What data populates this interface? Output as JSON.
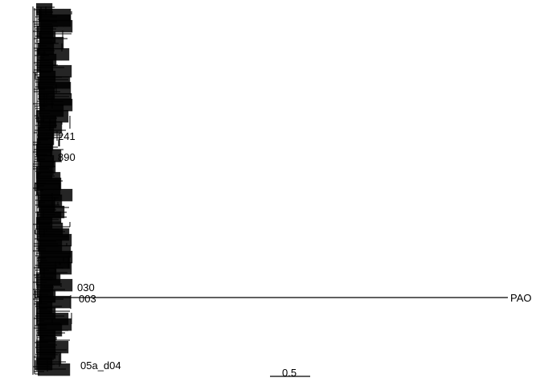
{
  "tree": {
    "outgroup_label": "PAO",
    "visible_tip_labels": [
      "PAO",
      "05a_d04",
      "890",
      "241",
      "003",
      "030"
    ],
    "scale_bar": {
      "label": "0.5",
      "length": 0.5
    },
    "line_color": "#000000",
    "background_color": "#ffffff"
  }
}
